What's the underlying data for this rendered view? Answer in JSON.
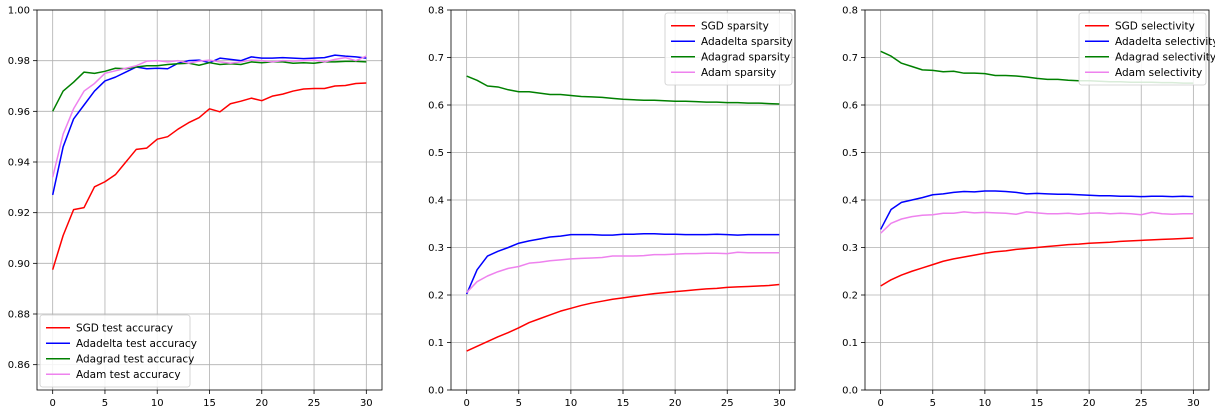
{
  "chart_data": [
    {
      "type": "line",
      "grid": true,
      "legend_position": "lower-left",
      "xlim": [
        -1.5,
        31.5
      ],
      "ylim": [
        0.85,
        1.0
      ],
      "xticks": [
        "0",
        "5",
        "10",
        "15",
        "20",
        "25",
        "30"
      ],
      "xtick_values": [
        0,
        5,
        10,
        15,
        20,
        25,
        30
      ],
      "yticks": [
        "0.86",
        "0.88",
        "0.90",
        "0.92",
        "0.94",
        "0.96",
        "0.98",
        "1.00"
      ],
      "ytick_values": [
        0.86,
        0.88,
        0.9,
        0.92,
        0.94,
        0.96,
        0.98,
        1.0
      ],
      "x": [
        0,
        1,
        2,
        3,
        4,
        5,
        6,
        7,
        8,
        9,
        10,
        11,
        12,
        13,
        14,
        15,
        16,
        17,
        18,
        19,
        20,
        21,
        22,
        23,
        24,
        25,
        26,
        27,
        28,
        29,
        30
      ],
      "series": [
        {
          "name": "SGD test accuracy",
          "color": "#ff0000",
          "values": [
            0.8975,
            0.911,
            0.9212,
            0.922,
            0.9302,
            0.9322,
            0.935,
            0.94,
            0.945,
            0.9455,
            0.949,
            0.95,
            0.953,
            0.9555,
            0.9575,
            0.961,
            0.9598,
            0.963,
            0.964,
            0.9652,
            0.9642,
            0.966,
            0.9668,
            0.968,
            0.9688,
            0.969,
            0.969,
            0.97,
            0.9702,
            0.971,
            0.9712
          ]
        },
        {
          "name": "Adadelta test accuracy",
          "color": "#0000ff",
          "values": [
            0.927,
            0.946,
            0.957,
            0.9625,
            0.968,
            0.972,
            0.9735,
            0.9755,
            0.9775,
            0.9768,
            0.977,
            0.9768,
            0.979,
            0.98,
            0.9802,
            0.9792,
            0.981,
            0.9805,
            0.98,
            0.9815,
            0.981,
            0.981,
            0.9812,
            0.981,
            0.9808,
            0.981,
            0.9812,
            0.9822,
            0.9818,
            0.9815,
            0.981
          ]
        },
        {
          "name": "Adagrad test accuracy",
          "color": "#008000",
          "values": [
            0.96,
            0.968,
            0.9715,
            0.9755,
            0.975,
            0.9758,
            0.977,
            0.9768,
            0.9775,
            0.978,
            0.978,
            0.9785,
            0.9788,
            0.979,
            0.9782,
            0.9792,
            0.9785,
            0.9788,
            0.9785,
            0.9795,
            0.9792,
            0.9795,
            0.9795,
            0.979,
            0.9792,
            0.979,
            0.9795,
            0.9795,
            0.9797,
            0.9797,
            0.9795
          ]
        },
        {
          "name": "Adam test accuracy",
          "color": "#ee82ee",
          "values": [
            0.934,
            0.951,
            0.961,
            0.968,
            0.971,
            0.975,
            0.976,
            0.977,
            0.978,
            0.9798,
            0.98,
            0.9795,
            0.98,
            0.979,
            0.9798,
            0.9802,
            0.9795,
            0.979,
            0.9795,
            0.9802,
            0.98,
            0.9795,
            0.98,
            0.9798,
            0.98,
            0.9802,
            0.9795,
            0.9805,
            0.9812,
            0.98,
            0.9818
          ]
        }
      ]
    },
    {
      "type": "line",
      "grid": true,
      "legend_position": "upper-right",
      "xlim": [
        -1.5,
        31.5
      ],
      "ylim": [
        0.0,
        0.8
      ],
      "xticks": [
        "0",
        "5",
        "10",
        "15",
        "20",
        "25",
        "30"
      ],
      "xtick_values": [
        0,
        5,
        10,
        15,
        20,
        25,
        30
      ],
      "yticks": [
        "0.0",
        "0.1",
        "0.2",
        "0.3",
        "0.4",
        "0.5",
        "0.6",
        "0.7",
        "0.8"
      ],
      "ytick_values": [
        0,
        0.1,
        0.2,
        0.3,
        0.4,
        0.5,
        0.6,
        0.7,
        0.8
      ],
      "x": [
        0,
        1,
        2,
        3,
        4,
        5,
        6,
        7,
        8,
        9,
        10,
        11,
        12,
        13,
        14,
        15,
        16,
        17,
        18,
        19,
        20,
        21,
        22,
        23,
        24,
        25,
        26,
        27,
        28,
        29,
        30
      ],
      "series": [
        {
          "name": "SGD sparsity",
          "color": "#ff0000",
          "values": [
            0.082,
            0.092,
            0.102,
            0.112,
            0.121,
            0.131,
            0.142,
            0.15,
            0.158,
            0.166,
            0.172,
            0.178,
            0.183,
            0.187,
            0.191,
            0.194,
            0.197,
            0.2,
            0.203,
            0.205,
            0.207,
            0.209,
            0.211,
            0.213,
            0.214,
            0.216,
            0.217,
            0.218,
            0.219,
            0.22,
            0.222
          ]
        },
        {
          "name": "Adadelta sparsity",
          "color": "#0000ff",
          "values": [
            0.202,
            0.253,
            0.282,
            0.292,
            0.3,
            0.309,
            0.314,
            0.318,
            0.322,
            0.324,
            0.327,
            0.327,
            0.327,
            0.326,
            0.326,
            0.328,
            0.328,
            0.329,
            0.329,
            0.328,
            0.328,
            0.327,
            0.327,
            0.327,
            0.328,
            0.327,
            0.326,
            0.327,
            0.327,
            0.327,
            0.327
          ]
        },
        {
          "name": "Adagrad sparsity",
          "color": "#008000",
          "values": [
            0.661,
            0.652,
            0.64,
            0.638,
            0.632,
            0.628,
            0.628,
            0.625,
            0.622,
            0.622,
            0.62,
            0.618,
            0.617,
            0.616,
            0.614,
            0.612,
            0.611,
            0.61,
            0.61,
            0.609,
            0.608,
            0.608,
            0.607,
            0.606,
            0.606,
            0.605,
            0.605,
            0.604,
            0.604,
            0.603,
            0.602
          ]
        },
        {
          "name": "Adam sparsity",
          "color": "#ee82ee",
          "values": [
            0.205,
            0.228,
            0.24,
            0.249,
            0.256,
            0.26,
            0.267,
            0.269,
            0.272,
            0.274,
            0.276,
            0.277,
            0.278,
            0.279,
            0.282,
            0.282,
            0.282,
            0.283,
            0.285,
            0.285,
            0.286,
            0.287,
            0.287,
            0.288,
            0.288,
            0.287,
            0.29,
            0.289,
            0.289,
            0.289,
            0.289
          ]
        }
      ]
    },
    {
      "type": "line",
      "grid": true,
      "legend_position": "upper-right",
      "xlim": [
        -1.5,
        31.5
      ],
      "ylim": [
        0.0,
        0.8
      ],
      "xticks": [
        "0",
        "5",
        "10",
        "15",
        "20",
        "25",
        "30"
      ],
      "xtick_values": [
        0,
        5,
        10,
        15,
        20,
        25,
        30
      ],
      "yticks": [
        "0.0",
        "0.1",
        "0.2",
        "0.3",
        "0.4",
        "0.5",
        "0.6",
        "0.7",
        "0.8"
      ],
      "ytick_values": [
        0,
        0.1,
        0.2,
        0.3,
        0.4,
        0.5,
        0.6,
        0.7,
        0.8
      ],
      "x": [
        0,
        1,
        2,
        3,
        4,
        5,
        6,
        7,
        8,
        9,
        10,
        11,
        12,
        13,
        14,
        15,
        16,
        17,
        18,
        19,
        20,
        21,
        22,
        23,
        24,
        25,
        26,
        27,
        28,
        29,
        30
      ],
      "series": [
        {
          "name": "SGD selectivity",
          "color": "#ff0000",
          "values": [
            0.219,
            0.232,
            0.242,
            0.25,
            0.257,
            0.264,
            0.271,
            0.276,
            0.28,
            0.284,
            0.288,
            0.291,
            0.293,
            0.296,
            0.298,
            0.3,
            0.302,
            0.304,
            0.306,
            0.307,
            0.309,
            0.31,
            0.311,
            0.313,
            0.314,
            0.315,
            0.316,
            0.317,
            0.318,
            0.319,
            0.32
          ]
        },
        {
          "name": "Adadelta selectivity",
          "color": "#0000ff",
          "values": [
            0.338,
            0.38,
            0.395,
            0.4,
            0.405,
            0.411,
            0.413,
            0.416,
            0.418,
            0.417,
            0.419,
            0.419,
            0.418,
            0.416,
            0.413,
            0.414,
            0.413,
            0.412,
            0.412,
            0.411,
            0.41,
            0.409,
            0.409,
            0.408,
            0.408,
            0.407,
            0.408,
            0.408,
            0.407,
            0.408,
            0.407
          ]
        },
        {
          "name": "Adagrad selectivity",
          "color": "#008000",
          "values": [
            0.713,
            0.703,
            0.688,
            0.681,
            0.674,
            0.673,
            0.67,
            0.671,
            0.667,
            0.667,
            0.666,
            0.662,
            0.662,
            0.661,
            0.659,
            0.656,
            0.654,
            0.654,
            0.652,
            0.651,
            0.651,
            0.65,
            0.649,
            0.649,
            0.648,
            0.648,
            0.648,
            0.647,
            0.647,
            0.646,
            0.646
          ]
        },
        {
          "name": "Adam selectivity",
          "color": "#ee82ee",
          "values": [
            0.33,
            0.351,
            0.36,
            0.365,
            0.368,
            0.369,
            0.372,
            0.372,
            0.375,
            0.373,
            0.374,
            0.373,
            0.372,
            0.37,
            0.375,
            0.373,
            0.371,
            0.371,
            0.372,
            0.37,
            0.372,
            0.373,
            0.371,
            0.372,
            0.371,
            0.369,
            0.374,
            0.371,
            0.37,
            0.371,
            0.371
          ]
        }
      ]
    }
  ]
}
